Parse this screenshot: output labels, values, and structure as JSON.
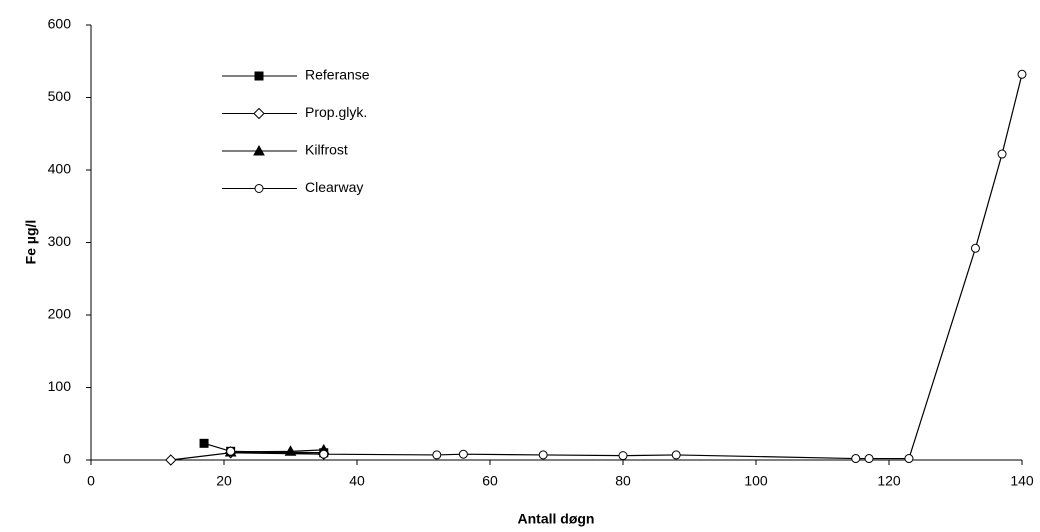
{
  "chart_data": {
    "type": "line",
    "x_label": "Antall døgn",
    "y_label": "Fe µg/l",
    "xlim": [
      0,
      140
    ],
    "xticks": [
      0,
      20,
      40,
      60,
      80,
      100,
      120,
      140
    ],
    "ylim": [
      0,
      600
    ],
    "yticks": [
      0,
      100,
      200,
      300,
      400,
      500,
      600
    ],
    "legend": "upper-left",
    "series": [
      {
        "name": "Referanse",
        "color": "#000000",
        "marker": "square",
        "x": [
          17,
          21,
          35
        ],
        "values": [
          23,
          12,
          10
        ]
      },
      {
        "name": "Prop.glyk.",
        "color": "#000000",
        "marker": "diamond",
        "x": [
          12,
          21,
          35
        ],
        "values": [
          0,
          10,
          8
        ]
      },
      {
        "name": "Kilfrost",
        "color": "#000000",
        "marker": "triangle",
        "x": [
          21,
          30,
          35
        ],
        "values": [
          11,
          12,
          14
        ]
      },
      {
        "name": "Clearway",
        "color": "#000000",
        "marker": "circle",
        "x": [
          21,
          35,
          52,
          56,
          68,
          80,
          88,
          115,
          117,
          123,
          133,
          137,
          140
        ],
        "values": [
          12,
          8,
          7,
          8,
          7,
          6,
          7,
          2,
          2,
          2,
          292,
          422,
          532
        ]
      }
    ]
  }
}
